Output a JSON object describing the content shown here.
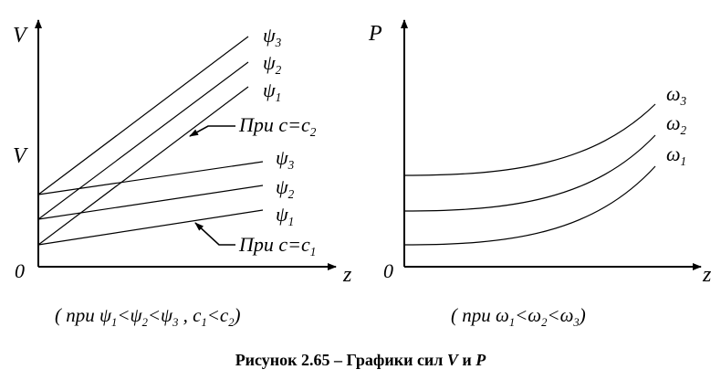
{
  "left_plot": {
    "y_axis_label": "V",
    "y_mid_label": "V",
    "x_axis_label": "z",
    "origin_label": "0",
    "curve_labels_upper": [
      "ψ3",
      "ψ2",
      "ψ1"
    ],
    "curve_labels_lower": [
      "ψ3",
      "ψ2",
      "ψ1"
    ],
    "annotation_upper": {
      "prefix": "При c=c",
      "sub": "2"
    },
    "annotation_lower": {
      "prefix": "При c=c",
      "sub": "1"
    },
    "condition": {
      "text_pre": "( при  ",
      "expr": "ψ1<ψ2<ψ3 ,  c1<c2",
      "text_post": " )"
    }
  },
  "right_plot": {
    "y_axis_label": "P",
    "x_axis_label": "z",
    "origin_label": "0",
    "curve_labels": [
      "ω3",
      "ω2",
      "ω1"
    ],
    "condition": {
      "text_pre": "( при  ",
      "expr": "ω1<ω2<ω3",
      "text_post": " )"
    }
  },
  "caption": {
    "prefix": "Рисунок 2.65 – Графики сил ",
    "var1": "V",
    "middle": " и ",
    "var2": "P"
  }
}
